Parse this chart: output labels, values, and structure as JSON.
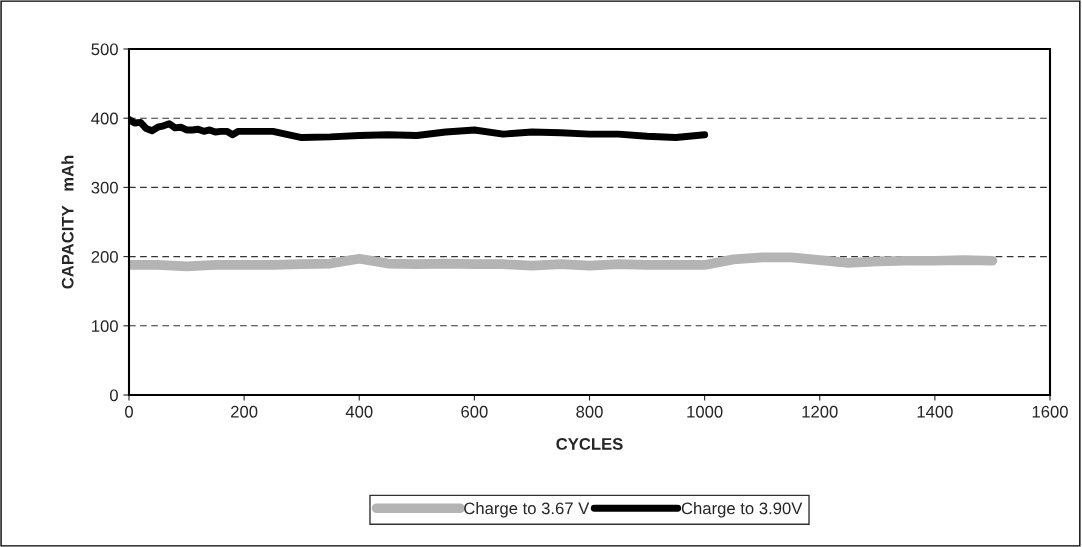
{
  "chart_data": {
    "type": "line",
    "xlabel": "CYCLES",
    "ylabel": "CAPACITY   mAh",
    "xlim": [
      0,
      1600
    ],
    "xticks": [
      0,
      200,
      400,
      600,
      800,
      1000,
      1200,
      1400,
      1600
    ],
    "ylim": [
      0,
      500
    ],
    "yticks": [
      0,
      100,
      200,
      300,
      400,
      500
    ],
    "grid": "y",
    "legend": "bottom",
    "marker": "none",
    "series": [
      {
        "name": "Charge to 3.67 V",
        "color": "#b4b4b4",
        "x": [
          0,
          50,
          100,
          150,
          200,
          250,
          300,
          350,
          400,
          450,
          500,
          550,
          600,
          650,
          700,
          750,
          800,
          850,
          900,
          950,
          1000,
          1050,
          1100,
          1150,
          1200,
          1250,
          1300,
          1350,
          1400,
          1450,
          1500
        ],
        "values": [
          188,
          188,
          186,
          188,
          188,
          188,
          189,
          190,
          197,
          190,
          189,
          190,
          189,
          189,
          187,
          189,
          187,
          189,
          188,
          188,
          188,
          196,
          199,
          199,
          195,
          191,
          193,
          194,
          194,
          195,
          194
        ]
      },
      {
        "name": "Charge to 3.90V",
        "color": "#000000",
        "x": [
          0,
          10,
          20,
          30,
          40,
          50,
          60,
          70,
          80,
          90,
          100,
          110,
          120,
          130,
          140,
          150,
          160,
          170,
          180,
          190,
          250,
          300,
          350,
          400,
          450,
          500,
          550,
          600,
          650,
          700,
          750,
          800,
          850,
          900,
          950,
          1000
        ],
        "values": [
          398,
          393,
          394,
          385,
          382,
          387,
          389,
          392,
          386,
          387,
          383,
          383,
          384,
          381,
          383,
          380,
          381,
          381,
          376,
          381,
          381,
          372,
          373,
          375,
          376,
          375,
          380,
          383,
          377,
          380,
          379,
          377,
          377,
          374,
          372,
          376
        ]
      }
    ]
  }
}
